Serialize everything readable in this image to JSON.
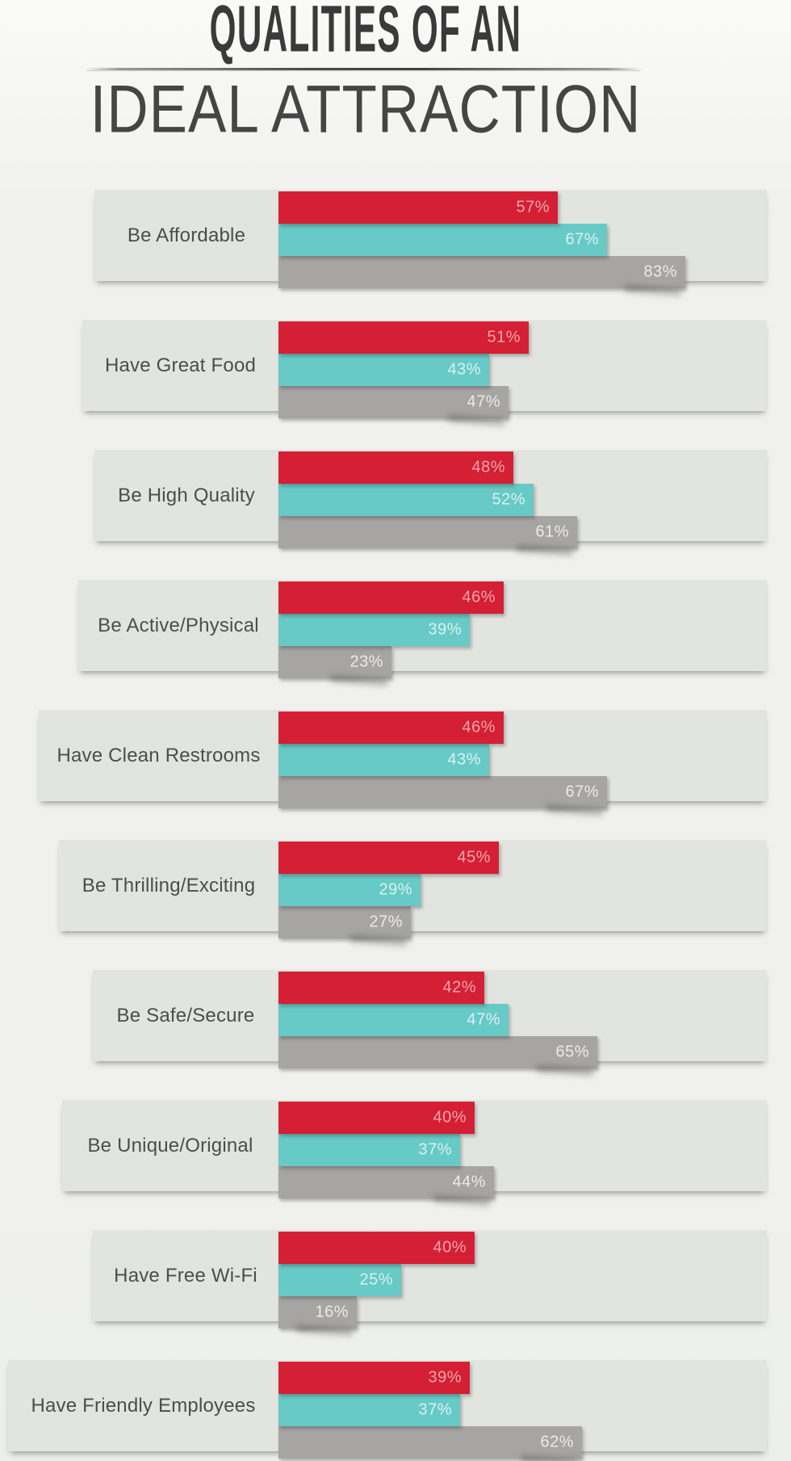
{
  "title": {
    "line1": "QUALITIES OF AN",
    "line2": "IDEAL ATTRACTION"
  },
  "colors": {
    "red": "#d41f34",
    "teal": "#67cac6",
    "gray": "#a7a5a3",
    "plate": "#e2e4df"
  },
  "chart_data": {
    "type": "bar",
    "orientation": "horizontal",
    "unit": "%",
    "categories": [
      "Be Affordable",
      "Have Great Food",
      "Be High Quality",
      "Be Active/Physical",
      "Have Clean Restrooms",
      "Be Thrilling/Exciting",
      "Be Safe/Secure",
      "Be Unique/Original",
      "Have Free Wi-Fi",
      "Have Friendly Employees"
    ],
    "series": [
      {
        "color": "#d41f34",
        "values": [
          57,
          51,
          48,
          46,
          46,
          45,
          42,
          40,
          40,
          39
        ]
      },
      {
        "color": "#67cac6",
        "values": [
          67,
          43,
          52,
          39,
          43,
          29,
          47,
          37,
          25,
          37
        ]
      },
      {
        "color": "#a7a5a3",
        "values": [
          83,
          47,
          61,
          23,
          67,
          27,
          65,
          44,
          16,
          62
        ]
      }
    ],
    "xlim": [
      0,
      100
    ],
    "value_labels_visible": true,
    "legend": "none"
  }
}
